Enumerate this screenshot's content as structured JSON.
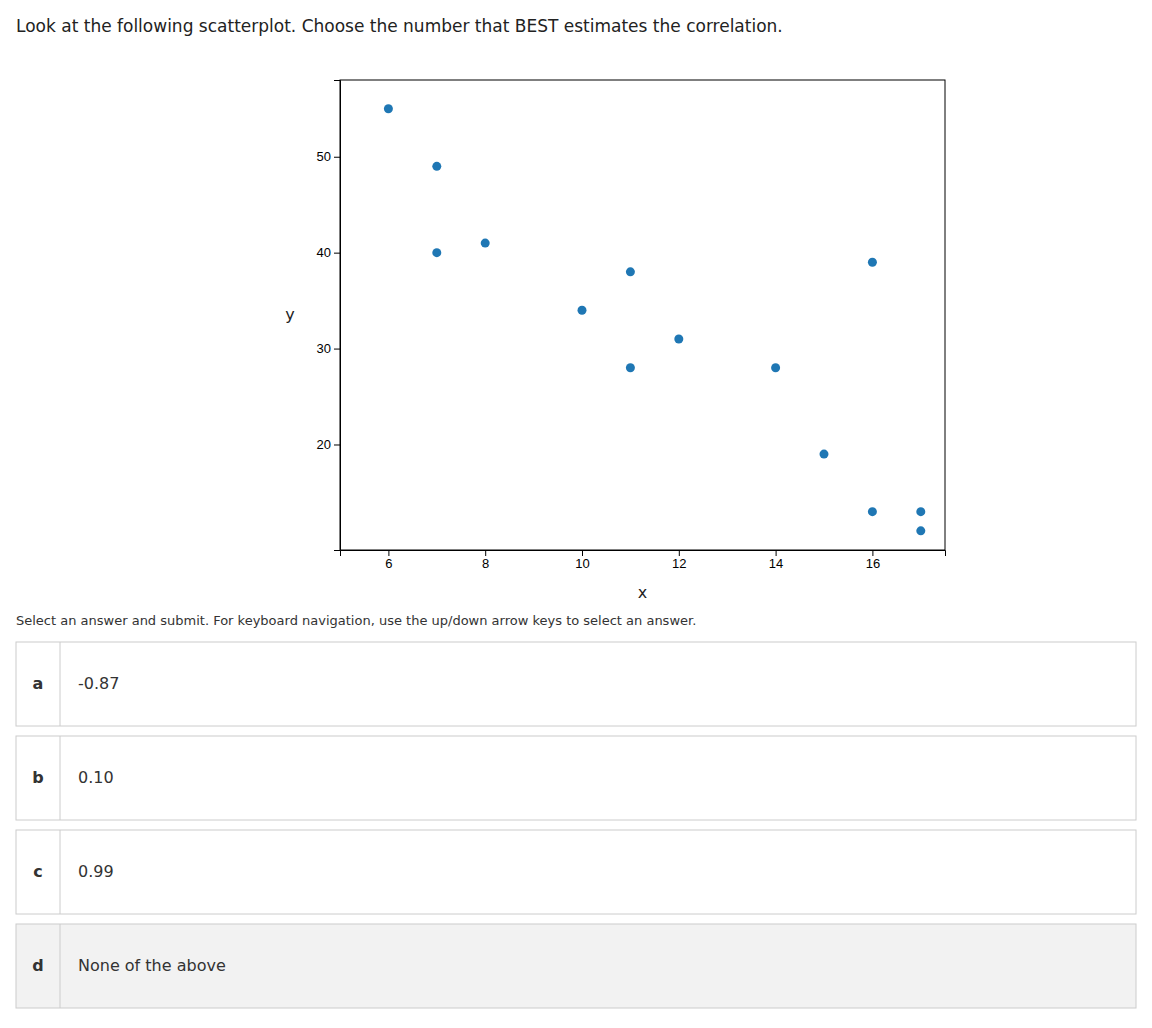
{
  "chart_data": {
    "type": "scatter",
    "title": "Look at the following scatterplot. Choose the number that BEST estimates the correlation.",
    "subtitle": "Select an answer and submit. For keyboard navigation, use the up/down arrow keys to select an answer.",
    "x": [
      6,
      7,
      7,
      8,
      10,
      11,
      11,
      12,
      14,
      15,
      16,
      16,
      17,
      17
    ],
    "values": [
      55,
      49,
      40,
      41,
      34,
      38,
      28,
      31,
      28,
      19,
      39,
      13,
      13,
      11
    ],
    "xlabel": "x",
    "ylabel": "y",
    "xlim": [
      5.0,
      17.5
    ],
    "ylim": [
      9,
      58
    ],
    "xticks": [
      6,
      8,
      10,
      12,
      14,
      16
    ],
    "yticks": [
      20,
      30,
      40,
      50
    ],
    "grid": false,
    "choices": [
      {
        "label": "a",
        "text": "-0.87"
      },
      {
        "label": "b",
        "text": "0.10"
      },
      {
        "label": "c",
        "text": "0.99"
      },
      {
        "label": "d",
        "text": "None of the above"
      }
    ]
  }
}
